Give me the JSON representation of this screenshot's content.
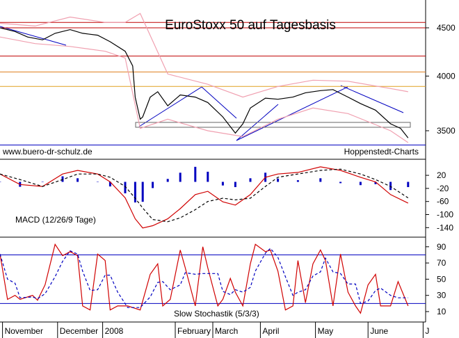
{
  "chart_data": [
    {
      "type": "line",
      "title": "EuroStoxx 50 auf Tagesbasis",
      "annotations": [
        "www.buero-dr-schulz.de",
        "Hoppenstedt-Charts"
      ],
      "log": true,
      "xlim": [
        0,
        170
      ],
      "ylim": [
        3270,
        4800
      ],
      "yticks": [
        3500,
        4000,
        4500
      ],
      "levels": [
        {
          "value": 4560,
          "color": "#c00000"
        },
        {
          "value": 4500,
          "color": "#c00000"
        },
        {
          "value": 4200,
          "color": "#c00000"
        },
        {
          "value": 4040,
          "color": "#e08020"
        },
        {
          "value": 3900,
          "color": "#e0a020"
        },
        {
          "value": 3380,
          "color": "#0000c0"
        }
      ],
      "series": [
        {
          "color": "#f0a0b0",
          "x": [
            0,
            14,
            28,
            42,
            50,
            56,
            67,
            83,
            97,
            111,
            125,
            139,
            156,
            163
          ],
          "values": [
            4550,
            4520,
            4620,
            4560,
            4560,
            4660,
            4020,
            3920,
            3800,
            3900,
            3960,
            3950,
            3880,
            3850
          ]
        },
        {
          "color": "#f0a0b0",
          "x": [
            0,
            14,
            28,
            42,
            50,
            56,
            67,
            83,
            97,
            111,
            125,
            139,
            156,
            163
          ],
          "values": [
            4400,
            4330,
            4300,
            4250,
            4180,
            3520,
            3600,
            3500,
            3450,
            3600,
            3700,
            3650,
            3500,
            3400
          ]
        },
        {
          "color": "#000000",
          "x": [
            0,
            6,
            11,
            17,
            22,
            28,
            33,
            39,
            44,
            50,
            53,
            54,
            56,
            57,
            60,
            63,
            67,
            72,
            78,
            83,
            89,
            94,
            97,
            100,
            106,
            111,
            117,
            122,
            128,
            133,
            139,
            144,
            150,
            156,
            160,
            163
          ],
          "values": [
            4500,
            4460,
            4400,
            4370,
            4440,
            4480,
            4440,
            4420,
            4350,
            4250,
            4100,
            3800,
            3600,
            3620,
            3800,
            3850,
            3720,
            3820,
            3800,
            3750,
            3620,
            3480,
            3560,
            3700,
            3790,
            3780,
            3800,
            3840,
            3860,
            3870,
            3800,
            3740,
            3680,
            3560,
            3520,
            3440
          ]
        }
      ]
    },
    {
      "type": "line",
      "label": "MACD (12/26/9 Tage)",
      "xlim": [
        0,
        170
      ],
      "ylim": [
        -167,
        67
      ],
      "yticks": [
        20,
        -20,
        -60,
        -100,
        -140
      ],
      "series": [
        {
          "type": "bar",
          "color": "#0000c0",
          "x": [
            0,
            8,
            17,
            25,
            31,
            39,
            44,
            50,
            54,
            57,
            61,
            67,
            72,
            78,
            83,
            89,
            94,
            100,
            106,
            111,
            119,
            128,
            136,
            144,
            150,
            156,
            163
          ],
          "values": [
            0,
            -15,
            0,
            17,
            11,
            0,
            -14,
            -35,
            -63,
            -61,
            -19,
            9,
            28,
            46,
            31,
            -11,
            -16,
            11,
            28,
            10,
            5,
            11,
            -4,
            -10,
            -7,
            -25,
            -16
          ]
        },
        {
          "color": "#d00000",
          "x": [
            0,
            8,
            17,
            25,
            31,
            39,
            44,
            50,
            54,
            57,
            61,
            67,
            72,
            78,
            83,
            89,
            94,
            100,
            106,
            111,
            119,
            128,
            136,
            144,
            150,
            156,
            163
          ],
          "values": [
            24,
            -8,
            -14,
            24,
            35,
            24,
            0,
            -49,
            -113,
            -141,
            -134,
            -113,
            -82,
            -39,
            -29,
            -61,
            -71,
            -39,
            14,
            24,
            29,
            46,
            35,
            14,
            0,
            -39,
            -65
          ]
        },
        {
          "color": "#000000",
          "dashed": true,
          "x": [
            0,
            8,
            17,
            25,
            31,
            39,
            44,
            50,
            54,
            57,
            61,
            67,
            72,
            78,
            83,
            89,
            94,
            100,
            106,
            111,
            119,
            128,
            136,
            144,
            150,
            156,
            163
          ],
          "values": [
            24,
            7,
            -14,
            7,
            24,
            24,
            14,
            -14,
            -50,
            -80,
            -115,
            -122,
            -110,
            -85,
            -60,
            -50,
            -55,
            -50,
            -14,
            14,
            24,
            35,
            39,
            24,
            7,
            -14,
            -49
          ]
        }
      ]
    },
    {
      "type": "line",
      "label": "Slow Stochastik (5/3/3)",
      "xlim": [
        0,
        170
      ],
      "ylim": [
        -2,
        101
      ],
      "yticks": [
        90,
        70,
        50,
        30,
        10
      ],
      "levels": [
        {
          "value": 80,
          "color": "#0000c0"
        },
        {
          "value": 20,
          "color": "#0000c0"
        }
      ],
      "xticks": [
        {
          "value": 1,
          "label": "November"
        },
        {
          "value": 23,
          "label": "December"
        },
        {
          "value": 41,
          "label": "2008"
        },
        {
          "value": 70,
          "label": "February"
        },
        {
          "value": 85,
          "label": "March"
        },
        {
          "value": 104,
          "label": "April"
        },
        {
          "value": 126,
          "label": "May"
        },
        {
          "value": 147,
          "label": "June"
        },
        {
          "value": 169,
          "label": "J"
        }
      ],
      "series": [
        {
          "color": "#d00000",
          "x": [
            0,
            3,
            6,
            8,
            13,
            15,
            18,
            22,
            25,
            28,
            31,
            33,
            36,
            39,
            42,
            44,
            47,
            51,
            56,
            60,
            63,
            65,
            68,
            72,
            74,
            78,
            81,
            83,
            87,
            89,
            92,
            94,
            97,
            100,
            102,
            106,
            108,
            111,
            114,
            117,
            119,
            122,
            125,
            128,
            130,
            133,
            136,
            139,
            142,
            144,
            147,
            150,
            152,
            156,
            159,
            163
          ],
          "values": [
            81,
            25,
            30,
            25,
            30,
            24,
            43,
            93,
            79,
            84,
            79,
            17,
            12,
            81,
            73,
            12,
            17,
            17,
            12,
            56,
            69,
            17,
            25,
            86,
            64,
            17,
            90,
            64,
            17,
            25,
            51,
            34,
            17,
            69,
            93,
            84,
            86,
            60,
            12,
            17,
            73,
            21,
            69,
            86,
            73,
            17,
            81,
            34,
            17,
            8,
            43,
            56,
            17,
            17,
            47,
            17
          ]
        },
        {
          "color": "#0000c0",
          "dashed": true,
          "x": [
            0,
            3,
            6,
            8,
            13,
            15,
            18,
            22,
            25,
            28,
            31,
            33,
            36,
            39,
            42,
            44,
            47,
            51,
            56,
            60,
            63,
            65,
            68,
            72,
            74,
            78,
            81,
            83,
            87,
            89,
            92,
            94,
            97,
            100,
            102,
            106,
            108,
            111,
            114,
            117,
            119,
            122,
            125,
            128,
            130,
            133,
            136,
            139,
            142,
            144,
            147,
            150,
            152,
            156,
            159,
            163
          ],
          "values": [
            81,
            50,
            45,
            27,
            28,
            26,
            32,
            53,
            72,
            85,
            81,
            60,
            36,
            37,
            55,
            55,
            34,
            15,
            15,
            28,
            46,
            47,
            37,
            43,
            58,
            56,
            57,
            57,
            57,
            35,
            31,
            37,
            34,
            40,
            60,
            82,
            88,
            77,
            53,
            30,
            34,
            37,
            54,
            59,
            76,
            59,
            57,
            44,
            44,
            20,
            23,
            36,
            39,
            30,
            27,
            27
          ]
        }
      ]
    }
  ]
}
